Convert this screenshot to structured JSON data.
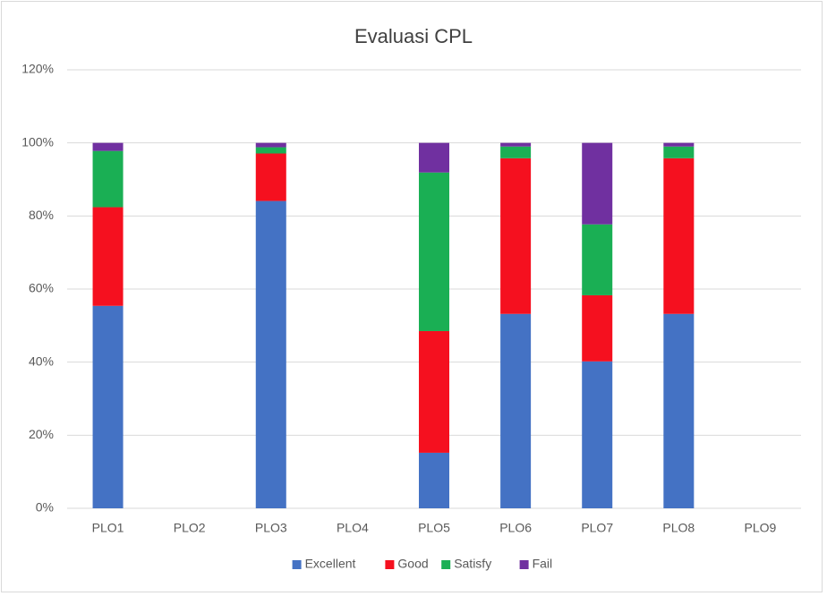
{
  "chart_data": {
    "type": "stacked_bar",
    "title": "Evaluasi CPL",
    "categories": [
      "PLO1",
      "PLO2",
      "PLO3",
      "PLO4",
      "PLO5",
      "PLO6",
      "PLO7",
      "PLO8",
      "PLO9"
    ],
    "series": [
      {
        "name": "Excellent",
        "color": "#4472c4",
        "values": [
          55.4,
          0,
          84.1,
          0,
          15.2,
          53.2,
          40.2,
          53.2,
          0
        ]
      },
      {
        "name": "Good",
        "color": "#f5101f",
        "values": [
          27.0,
          0,
          13.0,
          0,
          33.3,
          42.6,
          18.1,
          42.6,
          0
        ]
      },
      {
        "name": "Satisfy",
        "color": "#1aaf54",
        "values": [
          15.4,
          0,
          1.7,
          0,
          43.4,
          3.2,
          19.4,
          3.2,
          0
        ]
      },
      {
        "name": "Fail",
        "color": "#7030a0",
        "values": [
          2.2,
          0,
          1.2,
          0,
          8.1,
          1.0,
          22.3,
          1.0,
          0
        ]
      }
    ],
    "ylim": [
      0,
      120
    ],
    "yticks": [
      {
        "value": 0,
        "label": "0%"
      },
      {
        "value": 20,
        "label": "20%"
      },
      {
        "value": 40,
        "label": "40%"
      },
      {
        "value": 60,
        "label": "60%"
      },
      {
        "value": 80,
        "label": "80%"
      },
      {
        "value": 100,
        "label": "100%"
      },
      {
        "value": 120,
        "label": "120%"
      }
    ],
    "grid": true,
    "legend": "bottom"
  }
}
